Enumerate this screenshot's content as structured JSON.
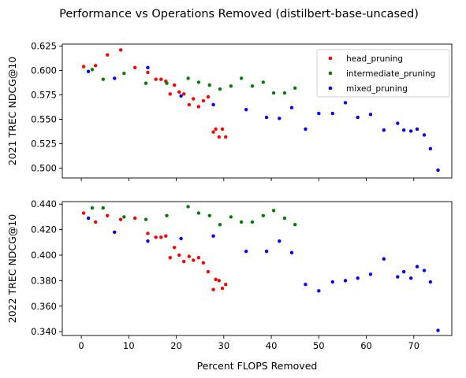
{
  "figure_title": "Performance vs Operations Removed (distilbert-base-uncased)",
  "xlabel": "Percent FLOPS Removed",
  "colors": {
    "head_pruning": "#ff0000",
    "intermediate_pruning": "#008000",
    "mixed_pruning": "#0000ff"
  },
  "chart_data": [
    {
      "type": "scatter",
      "ylabel": "2021 TREC NDCG@10",
      "xlim": [
        -4,
        78
      ],
      "ylim": [
        0.49,
        0.627
      ],
      "x_ticks": [
        0,
        10,
        20,
        30,
        40,
        50,
        60,
        70
      ],
      "y_ticks": [
        0.5,
        0.525,
        0.55,
        0.575,
        0.6,
        0.625
      ],
      "y_tick_labels": [
        "0.500",
        "0.525",
        "0.550",
        "0.575",
        "0.600",
        "0.625"
      ],
      "show_x_tick_labels": false,
      "legend": "top-right",
      "series": [
        {
          "name": "head_pruning",
          "points": [
            [
              0.5,
              0.604
            ],
            [
              3,
              0.605
            ],
            [
              5.5,
              0.616
            ],
            [
              8.3,
              0.621
            ],
            [
              11.3,
              0.603
            ],
            [
              14,
              0.598
            ],
            [
              15.7,
              0.591
            ],
            [
              16.8,
              0.591
            ],
            [
              17.8,
              0.589
            ],
            [
              18.7,
              0.576
            ],
            [
              19.6,
              0.585
            ],
            [
              20.6,
              0.578
            ],
            [
              21.6,
              0.576
            ],
            [
              22.7,
              0.565
            ],
            [
              23.6,
              0.571
            ],
            [
              24.7,
              0.563
            ],
            [
              25.7,
              0.569
            ],
            [
              26.7,
              0.573
            ],
            [
              27.8,
              0.537
            ],
            [
              28.3,
              0.54
            ],
            [
              29,
              0.532
            ],
            [
              29.7,
              0.54
            ],
            [
              30.4,
              0.532
            ]
          ]
        },
        {
          "name": "intermediate_pruning",
          "points": [
            [
              2.3,
              0.601
            ],
            [
              4.6,
              0.591
            ],
            [
              9,
              0.597
            ],
            [
              13.6,
              0.587
            ],
            [
              18,
              0.587
            ],
            [
              22.5,
              0.592
            ],
            [
              24.7,
              0.588
            ],
            [
              27,
              0.585
            ],
            [
              29.2,
              0.581
            ],
            [
              31.5,
              0.584
            ],
            [
              33.7,
              0.592
            ],
            [
              36,
              0.584
            ],
            [
              38.3,
              0.588
            ],
            [
              40.5,
              0.577
            ],
            [
              42.8,
              0.577
            ],
            [
              45,
              0.582
            ]
          ]
        },
        {
          "name": "mixed_pruning",
          "points": [
            [
              1.5,
              0.599
            ],
            [
              7,
              0.592
            ],
            [
              14,
              0.603
            ],
            [
              21,
              0.574
            ],
            [
              27.8,
              0.565
            ],
            [
              34.7,
              0.56
            ],
            [
              39,
              0.552
            ],
            [
              41.7,
              0.551
            ],
            [
              44.3,
              0.562
            ],
            [
              47.2,
              0.54
            ],
            [
              50,
              0.556
            ],
            [
              52.9,
              0.556
            ],
            [
              55.6,
              0.567
            ],
            [
              58.2,
              0.552
            ],
            [
              60.9,
              0.555
            ],
            [
              63.7,
              0.539
            ],
            [
              66.6,
              0.546
            ],
            [
              67.9,
              0.539
            ],
            [
              69.4,
              0.538
            ],
            [
              70.7,
              0.54
            ],
            [
              72.2,
              0.534
            ],
            [
              73.5,
              0.52
            ],
            [
              75.1,
              0.498
            ]
          ]
        }
      ]
    },
    {
      "type": "scatter",
      "ylabel": "2022 TREC NDCG@10",
      "xlim": [
        -4,
        78
      ],
      "ylim": [
        0.337,
        0.442
      ],
      "x_ticks": [
        0,
        10,
        20,
        30,
        40,
        50,
        60,
        70
      ],
      "y_ticks": [
        0.34,
        0.36,
        0.38,
        0.4,
        0.42,
        0.44
      ],
      "y_tick_labels": [
        "0.340",
        "0.360",
        "0.380",
        "0.400",
        "0.420",
        "0.440"
      ],
      "x_tick_labels": [
        "0",
        "10",
        "20",
        "30",
        "40",
        "50",
        "60",
        "70"
      ],
      "show_x_tick_labels": true,
      "series": [
        {
          "name": "head_pruning",
          "points": [
            [
              0.5,
              0.433
            ],
            [
              3,
              0.426
            ],
            [
              5.5,
              0.431
            ],
            [
              8.3,
              0.428
            ],
            [
              11.3,
              0.429
            ],
            [
              14,
              0.417
            ],
            [
              15.7,
              0.414
            ],
            [
              16.8,
              0.414
            ],
            [
              17.8,
              0.415
            ],
            [
              18.7,
              0.398
            ],
            [
              19.6,
              0.406
            ],
            [
              20.6,
              0.4
            ],
            [
              21.6,
              0.395
            ],
            [
              22.7,
              0.399
            ],
            [
              23.6,
              0.396
            ],
            [
              24.7,
              0.398
            ],
            [
              25.7,
              0.394
            ],
            [
              26.7,
              0.387
            ],
            [
              27.8,
              0.373
            ],
            [
              28.3,
              0.381
            ],
            [
              29,
              0.38
            ],
            [
              29.7,
              0.374
            ],
            [
              30.4,
              0.377
            ]
          ]
        },
        {
          "name": "intermediate_pruning",
          "points": [
            [
              2.3,
              0.437
            ],
            [
              4.6,
              0.437
            ],
            [
              9,
              0.43
            ],
            [
              13.6,
              0.428
            ],
            [
              18,
              0.431
            ],
            [
              22.5,
              0.438
            ],
            [
              24.7,
              0.433
            ],
            [
              27,
              0.431
            ],
            [
              29.2,
              0.424
            ],
            [
              31.5,
              0.43
            ],
            [
              33.7,
              0.426
            ],
            [
              36,
              0.426
            ],
            [
              38.3,
              0.431
            ],
            [
              40.5,
              0.435
            ],
            [
              42.8,
              0.429
            ],
            [
              45,
              0.424
            ]
          ]
        },
        {
          "name": "mixed_pruning",
          "points": [
            [
              1.5,
              0.429
            ],
            [
              7,
              0.418
            ],
            [
              14,
              0.411
            ],
            [
              21,
              0.413
            ],
            [
              27.8,
              0.415
            ],
            [
              34.7,
              0.403
            ],
            [
              39,
              0.403
            ],
            [
              41.7,
              0.411
            ],
            [
              44.3,
              0.402
            ],
            [
              47.2,
              0.377
            ],
            [
              50,
              0.372
            ],
            [
              52.9,
              0.379
            ],
            [
              55.6,
              0.38
            ],
            [
              58.2,
              0.382
            ],
            [
              60.9,
              0.385
            ],
            [
              63.7,
              0.397
            ],
            [
              66.6,
              0.383
            ],
            [
              67.9,
              0.387
            ],
            [
              69.4,
              0.382
            ],
            [
              70.7,
              0.391
            ],
            [
              72.2,
              0.388
            ],
            [
              73.5,
              0.379
            ],
            [
              75.1,
              0.341
            ]
          ]
        }
      ]
    }
  ]
}
